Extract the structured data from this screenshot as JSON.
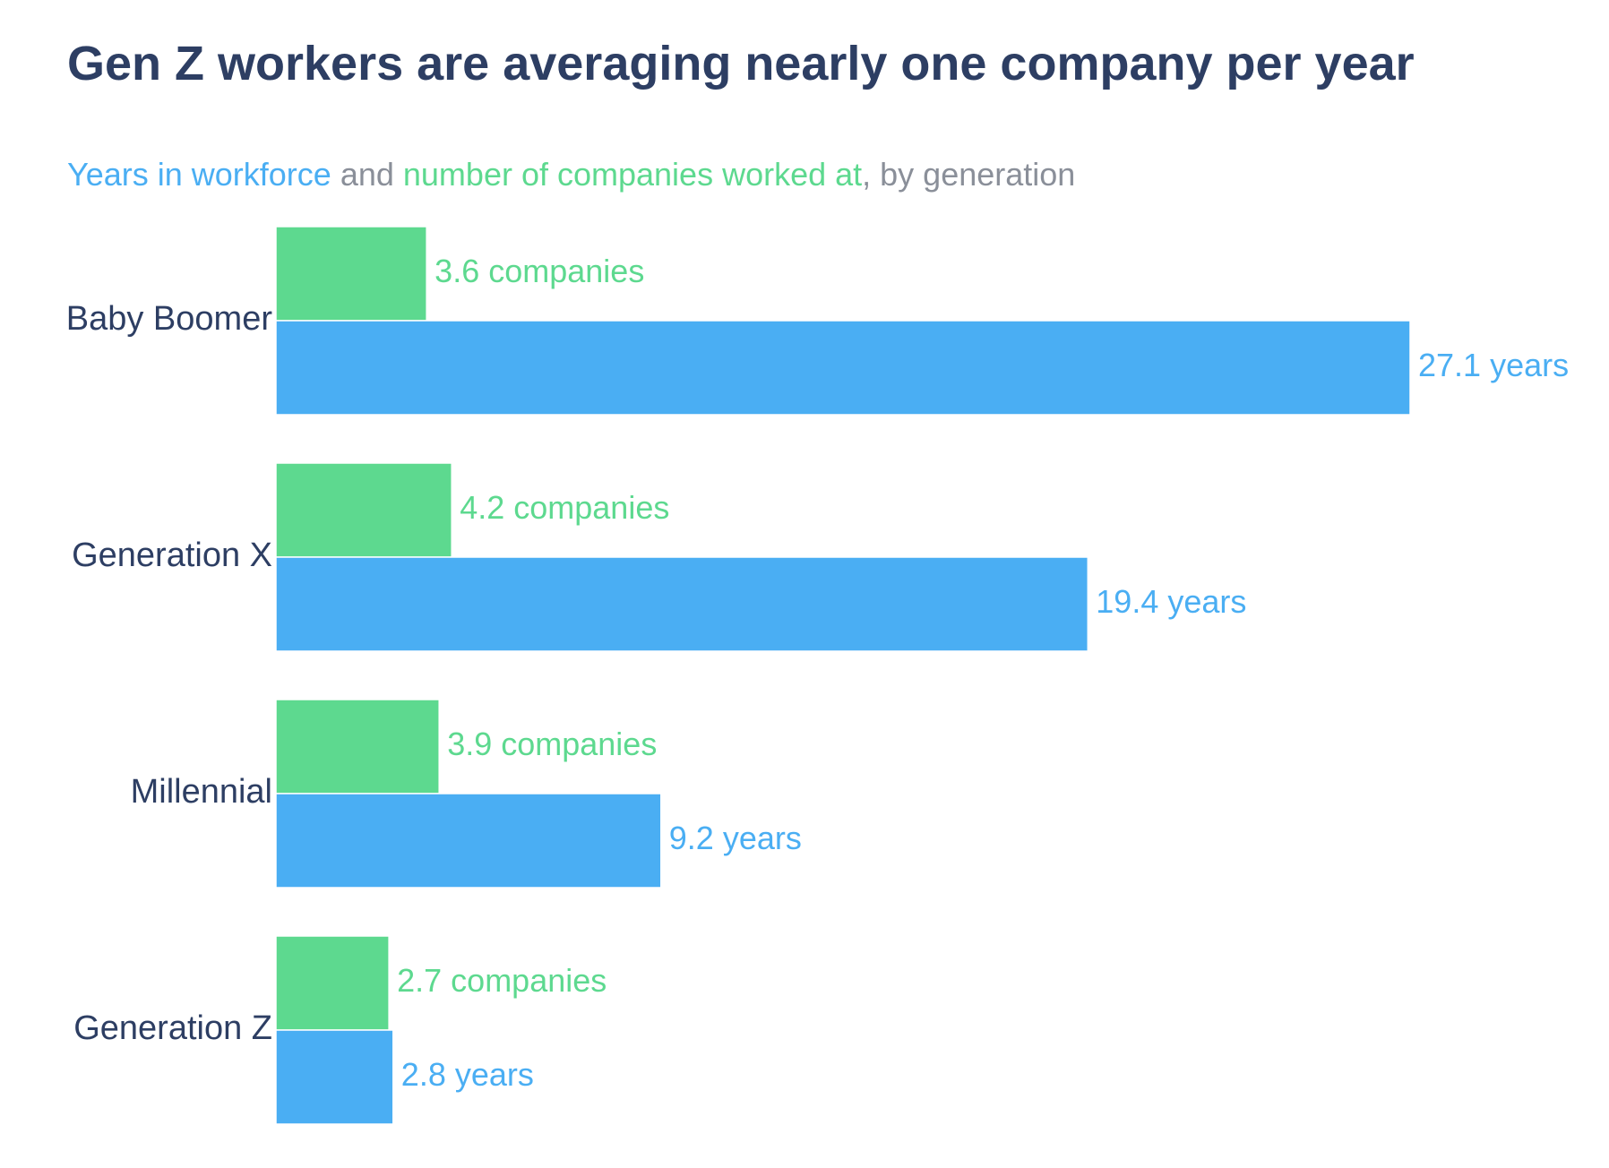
{
  "chart_data": {
    "type": "bar",
    "orientation": "horizontal",
    "title": "Gen Z workers are averaging nearly one company per year",
    "subtitle": {
      "years_label": "Years in workforce",
      "connector": " and ",
      "companies_label": "number of companies worked at",
      "suffix": ", by generation"
    },
    "categories": [
      "Baby Boomer",
      "Generation X",
      "Millennial",
      "Generation Z"
    ],
    "series": [
      {
        "name": "Number of companies worked at",
        "unit": "companies",
        "color": "#5dd98f",
        "values": [
          3.6,
          4.2,
          3.9,
          2.7
        ]
      },
      {
        "name": "Years in workforce",
        "unit": "years",
        "color": "#4aaef3",
        "values": [
          27.1,
          19.4,
          9.2,
          2.8
        ]
      }
    ],
    "xlim": [
      0,
      27.1
    ],
    "grid": false,
    "legend": "subtitle"
  }
}
